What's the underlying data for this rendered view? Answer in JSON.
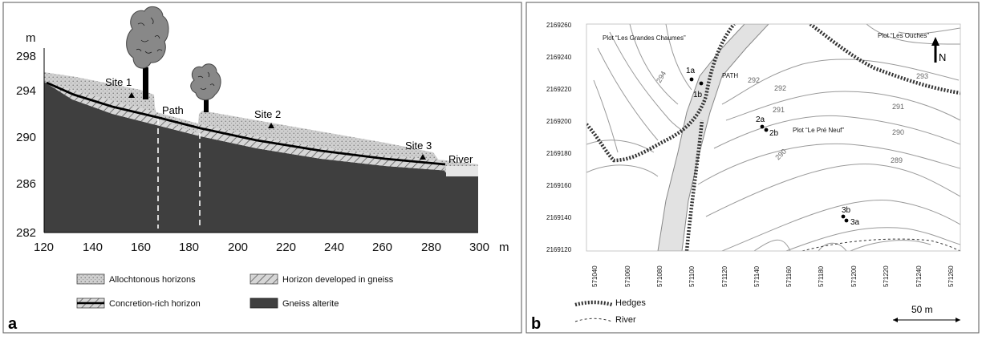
{
  "panel_a": {
    "label": "a",
    "y_unit": "m",
    "x_unit": "m",
    "y_ticks": [
      "298",
      "294",
      "290",
      "286",
      "282"
    ],
    "x_ticks": [
      "120",
      "140",
      "160",
      "180",
      "200",
      "220",
      "240",
      "260",
      "280",
      "300"
    ],
    "sites": [
      "Site 1",
      "Site 2",
      "Site 3"
    ],
    "path_label": "Path",
    "river_label": "River",
    "legend": {
      "allochtonous": "Allochtonous horizons",
      "gneiss_horizon": "Horizon developed in gneiss",
      "concretion": "Concretion-rich horizon",
      "alterite": "Gneiss alterite"
    },
    "colors": {
      "alterite": "#3d3d3d",
      "allochtonous": "#c9c9c9",
      "gneiss_horizon": "#d2d2d2"
    }
  },
  "panel_b": {
    "label": "b",
    "y_ticks": [
      "2169260",
      "2169240",
      "2169220",
      "2169200",
      "2169180",
      "2169160",
      "2169140",
      "2169120"
    ],
    "x_ticks": [
      "571040",
      "571060",
      "571080",
      "571100",
      "571120",
      "571140",
      "571160",
      "571180",
      "571200",
      "571220",
      "571240",
      "571260"
    ],
    "plots": {
      "grandes_chaumes": "Plot “Les Grandes Chaumes”",
      "ouches": "Plot “Les Ouches”",
      "pre_neuf": "Plot “Le Pré Neuf”"
    },
    "path_label": "PATH",
    "north_label": "N",
    "points": [
      "1a",
      "1b",
      "2a",
      "2b",
      "3b",
      "3a"
    ],
    "contours": [
      "294",
      "293",
      "292",
      "292",
      "291",
      "291",
      "290",
      "290",
      "289"
    ],
    "legend": {
      "hedges": "Hedges",
      "river": "River"
    },
    "scale_label": "50 m"
  }
}
